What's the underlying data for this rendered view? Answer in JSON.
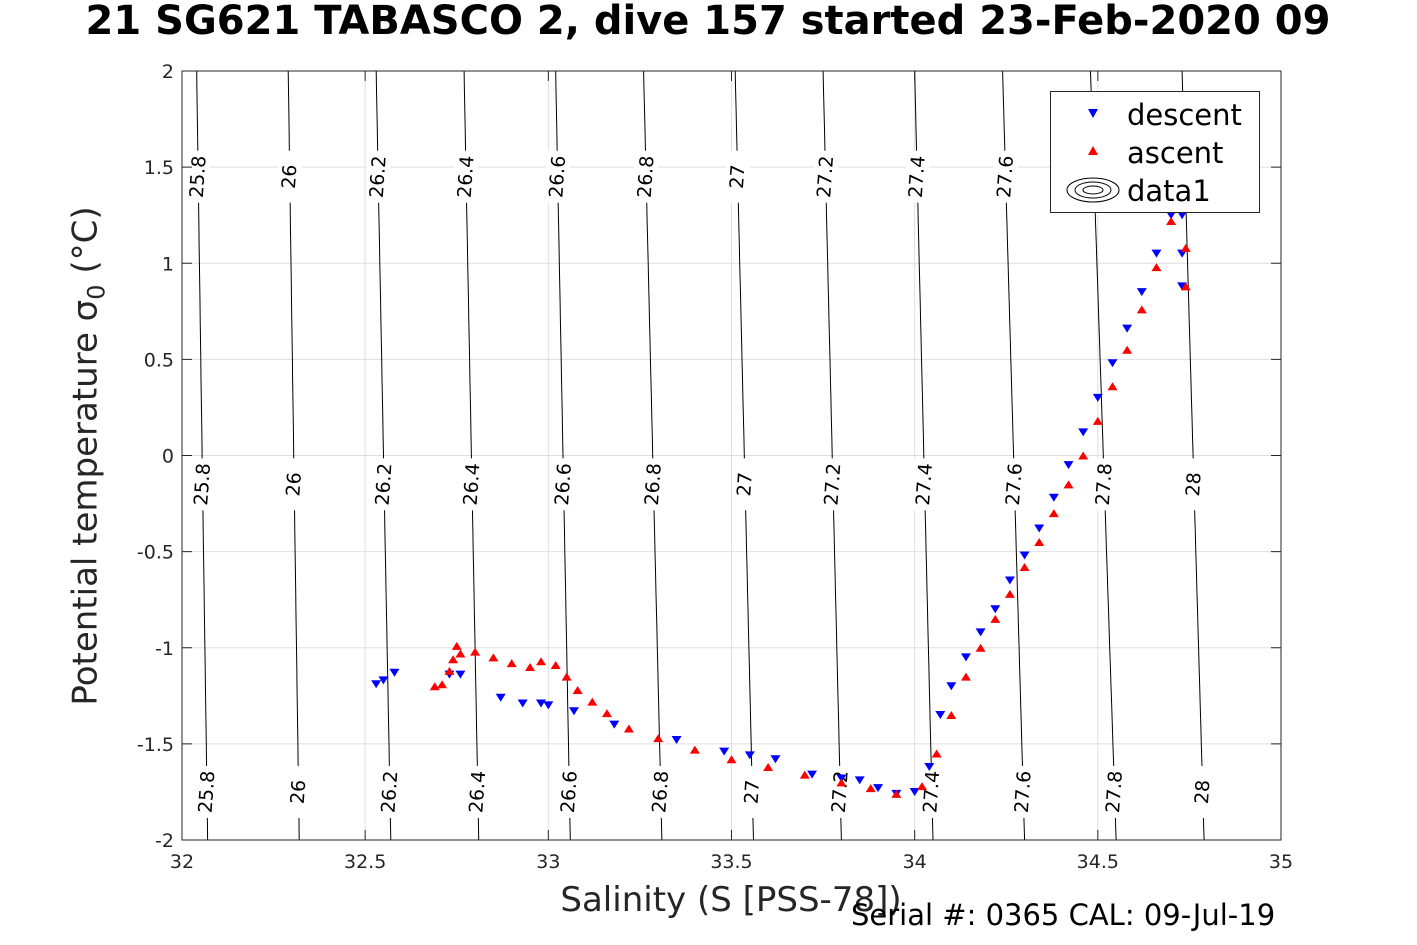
{
  "title": "21 SG621 TABASCO 2, dive 157 started 23-Feb-2020 09",
  "xlabel": "Salinity (S [PSS-78])",
  "ylabel": "Potential temperature σ",
  "ylabel_sub": "0",
  "ylabel_unit": " (°C)",
  "footer": "Serial #: 0365  CAL: 09-Jul-19",
  "legend": [
    {
      "name": "descent",
      "color": "#0000ff",
      "marker": "triangle-down"
    },
    {
      "name": "ascent",
      "color": "#ff0000",
      "marker": "triangle-up"
    },
    {
      "name": "data1",
      "color": "#000000",
      "marker": "contour"
    }
  ],
  "chart_data": {
    "type": "scatter",
    "xlim": [
      32,
      35
    ],
    "ylim": [
      -2,
      2
    ],
    "x_ticks": [
      "32",
      "32.5",
      "33",
      "33.5",
      "34",
      "34.5",
      "35"
    ],
    "y_ticks": [
      "-2",
      "-1.5",
      "-1",
      "-0.5",
      "0",
      "0.5",
      "1",
      "1.5",
      "2"
    ],
    "grid": true,
    "legend_position": "top-right",
    "contours": [
      {
        "label": "25.8",
        "bottom_x": 32.07,
        "top_x": 32.04
      },
      {
        "label": "26",
        "bottom_x": 32.32,
        "top_x": 32.29
      },
      {
        "label": "26.2",
        "bottom_x": 32.57,
        "top_x": 32.53
      },
      {
        "label": "26.4",
        "bottom_x": 32.81,
        "top_x": 32.77
      },
      {
        "label": "26.6",
        "bottom_x": 33.06,
        "top_x": 33.02
      },
      {
        "label": "26.8",
        "bottom_x": 33.31,
        "top_x": 33.26
      },
      {
        "label": "27",
        "bottom_x": 33.56,
        "top_x": 33.51
      },
      {
        "label": "27.2",
        "bottom_x": 33.8,
        "top_x": 33.75
      },
      {
        "label": "27.4",
        "bottom_x": 34.05,
        "top_x": 34.0
      },
      {
        "label": "27.6",
        "bottom_x": 34.3,
        "top_x": 34.24
      },
      {
        "label": "27.8",
        "bottom_x": 34.55,
        "top_x": 34.48
      },
      {
        "label": "28",
        "bottom_x": 34.79,
        "top_x": 34.73
      }
    ],
    "series": [
      {
        "name": "descent",
        "color": "#0000ff",
        "marker": "triangle-down",
        "points": [
          [
            32.53,
            -1.19
          ],
          [
            32.55,
            -1.17
          ],
          [
            32.58,
            -1.13
          ],
          [
            32.73,
            -1.14
          ],
          [
            32.76,
            -1.14
          ],
          [
            32.87,
            -1.26
          ],
          [
            32.93,
            -1.29
          ],
          [
            32.98,
            -1.29
          ],
          [
            33.0,
            -1.3
          ],
          [
            33.07,
            -1.33
          ],
          [
            33.18,
            -1.4
          ],
          [
            33.35,
            -1.48
          ],
          [
            33.48,
            -1.54
          ],
          [
            33.55,
            -1.56
          ],
          [
            33.62,
            -1.58
          ],
          [
            33.72,
            -1.66
          ],
          [
            33.8,
            -1.68
          ],
          [
            33.85,
            -1.69
          ],
          [
            33.9,
            -1.73
          ],
          [
            33.95,
            -1.76
          ],
          [
            34.0,
            -1.75
          ],
          [
            34.04,
            -1.62
          ],
          [
            34.07,
            -1.35
          ],
          [
            34.1,
            -1.2
          ],
          [
            34.14,
            -1.05
          ],
          [
            34.18,
            -0.92
          ],
          [
            34.22,
            -0.8
          ],
          [
            34.26,
            -0.65
          ],
          [
            34.3,
            -0.52
          ],
          [
            34.34,
            -0.38
          ],
          [
            34.38,
            -0.22
          ],
          [
            34.42,
            -0.05
          ],
          [
            34.46,
            0.12
          ],
          [
            34.5,
            0.3
          ],
          [
            34.54,
            0.48
          ],
          [
            34.58,
            0.66
          ],
          [
            34.62,
            0.85
          ],
          [
            34.66,
            1.05
          ],
          [
            34.7,
            1.25
          ],
          [
            34.72,
            1.4
          ],
          [
            34.73,
            0.88
          ],
          [
            34.73,
            1.05
          ],
          [
            34.73,
            1.25
          ]
        ]
      },
      {
        "name": "ascent",
        "color": "#ff0000",
        "marker": "triangle-up",
        "points": [
          [
            32.69,
            -1.2
          ],
          [
            32.71,
            -1.19
          ],
          [
            32.73,
            -1.12
          ],
          [
            32.74,
            -1.06
          ],
          [
            32.75,
            -0.99
          ],
          [
            32.76,
            -1.03
          ],
          [
            32.8,
            -1.02
          ],
          [
            32.85,
            -1.05
          ],
          [
            32.9,
            -1.08
          ],
          [
            32.95,
            -1.1
          ],
          [
            32.98,
            -1.07
          ],
          [
            33.02,
            -1.09
          ],
          [
            33.05,
            -1.15
          ],
          [
            33.08,
            -1.22
          ],
          [
            33.12,
            -1.28
          ],
          [
            33.16,
            -1.34
          ],
          [
            33.22,
            -1.42
          ],
          [
            33.3,
            -1.47
          ],
          [
            33.4,
            -1.53
          ],
          [
            33.5,
            -1.58
          ],
          [
            33.6,
            -1.62
          ],
          [
            33.7,
            -1.66
          ],
          [
            33.8,
            -1.7
          ],
          [
            33.88,
            -1.73
          ],
          [
            33.95,
            -1.76
          ],
          [
            34.02,
            -1.72
          ],
          [
            34.06,
            -1.55
          ],
          [
            34.1,
            -1.35
          ],
          [
            34.14,
            -1.15
          ],
          [
            34.18,
            -1.0
          ],
          [
            34.22,
            -0.85
          ],
          [
            34.26,
            -0.72
          ],
          [
            34.3,
            -0.58
          ],
          [
            34.34,
            -0.45
          ],
          [
            34.38,
            -0.3
          ],
          [
            34.42,
            -0.15
          ],
          [
            34.46,
            0.0
          ],
          [
            34.5,
            0.18
          ],
          [
            34.54,
            0.36
          ],
          [
            34.58,
            0.55
          ],
          [
            34.62,
            0.76
          ],
          [
            34.66,
            0.98
          ],
          [
            34.7,
            1.22
          ],
          [
            34.72,
            1.36
          ],
          [
            34.74,
            0.88
          ],
          [
            34.74,
            1.08
          ],
          [
            34.74,
            1.3
          ]
        ]
      }
    ]
  }
}
